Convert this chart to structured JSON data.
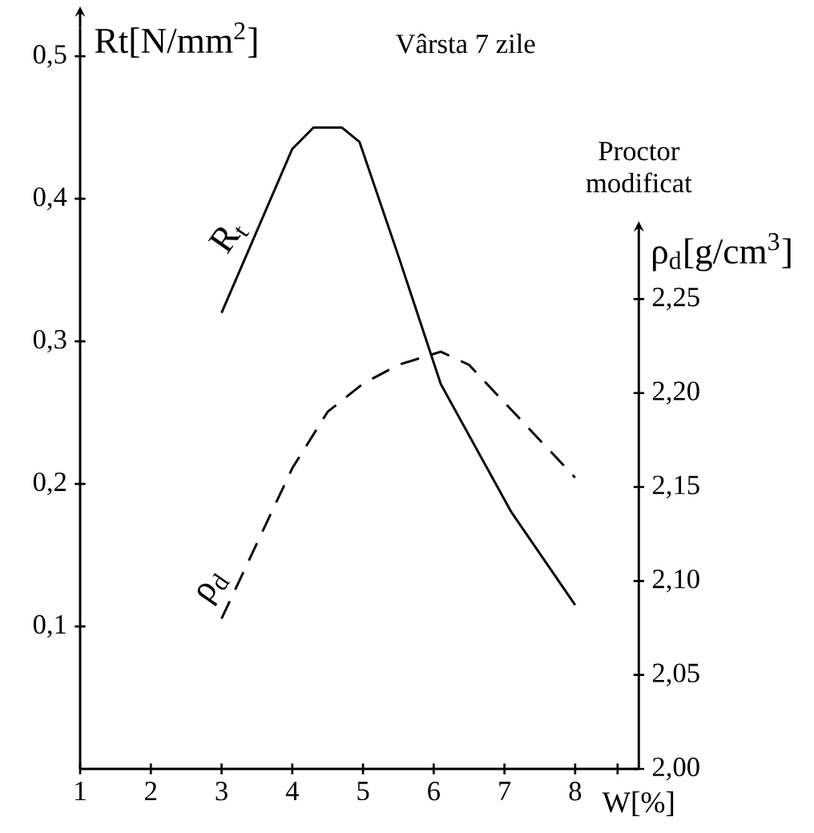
{
  "chart_data": {
    "type": "line",
    "title": "Vârsta 7 zile",
    "xlabel": "W[%]",
    "ylabel": "Rt[N/mm$^{2}$]",
    "y2label": "ρ$_{d}$[g/cm$^{3}$]",
    "annotations": [
      "Proctor modificat"
    ],
    "xlim": [
      1,
      8.9
    ],
    "xticks": [
      1,
      2,
      3,
      4,
      5,
      6,
      7,
      8,
      {
        "value": 8.6,
        "label": null
      }
    ],
    "ylim": [
      0,
      0.52
    ],
    "yticks": [
      {
        "value": 0.1,
        "label": "0,1"
      },
      {
        "value": 0.2,
        "label": "0,2"
      },
      {
        "value": 0.3,
        "label": "0,3"
      },
      {
        "value": 0.4,
        "label": "0,4"
      },
      {
        "value": 0.5,
        "label": "0,5"
      }
    ],
    "y2lim": [
      2.0,
      2.28
    ],
    "y2ticks": [
      {
        "value": 2.0,
        "label": "2,00"
      },
      {
        "value": 2.05,
        "label": "2,05"
      },
      {
        "value": 2.1,
        "label": "2,10"
      },
      {
        "value": 2.15,
        "label": "2,15"
      },
      {
        "value": 2.2,
        "label": "2,20"
      },
      {
        "value": 2.25,
        "label": "2,25"
      }
    ],
    "grid": false,
    "marker": "none",
    "series": [
      {
        "name": "R$_{t}$",
        "color": "#000000",
        "line_style": "solid",
        "x": [
          3.0,
          4.0,
          4.3,
          4.7,
          4.95,
          5.5,
          6.1,
          7.1,
          8.0
        ],
        "values": [
          0.32,
          0.435,
          0.45,
          0.45,
          0.44,
          0.36,
          0.27,
          0.18,
          0.115
        ]
      },
      {
        "name": "ρ$_{d}$",
        "color": "#000000",
        "line_style": "dashed",
        "axis": "y2",
        "x": [
          3.0,
          3.5,
          4.0,
          4.5,
          5.0,
          5.5,
          6.1,
          6.5,
          7.0,
          7.5,
          8.0
        ],
        "values": [
          2.08,
          2.12,
          2.16,
          2.19,
          2.205,
          2.215,
          2.222,
          2.215,
          2.195,
          2.175,
          2.155
        ]
      }
    ]
  }
}
